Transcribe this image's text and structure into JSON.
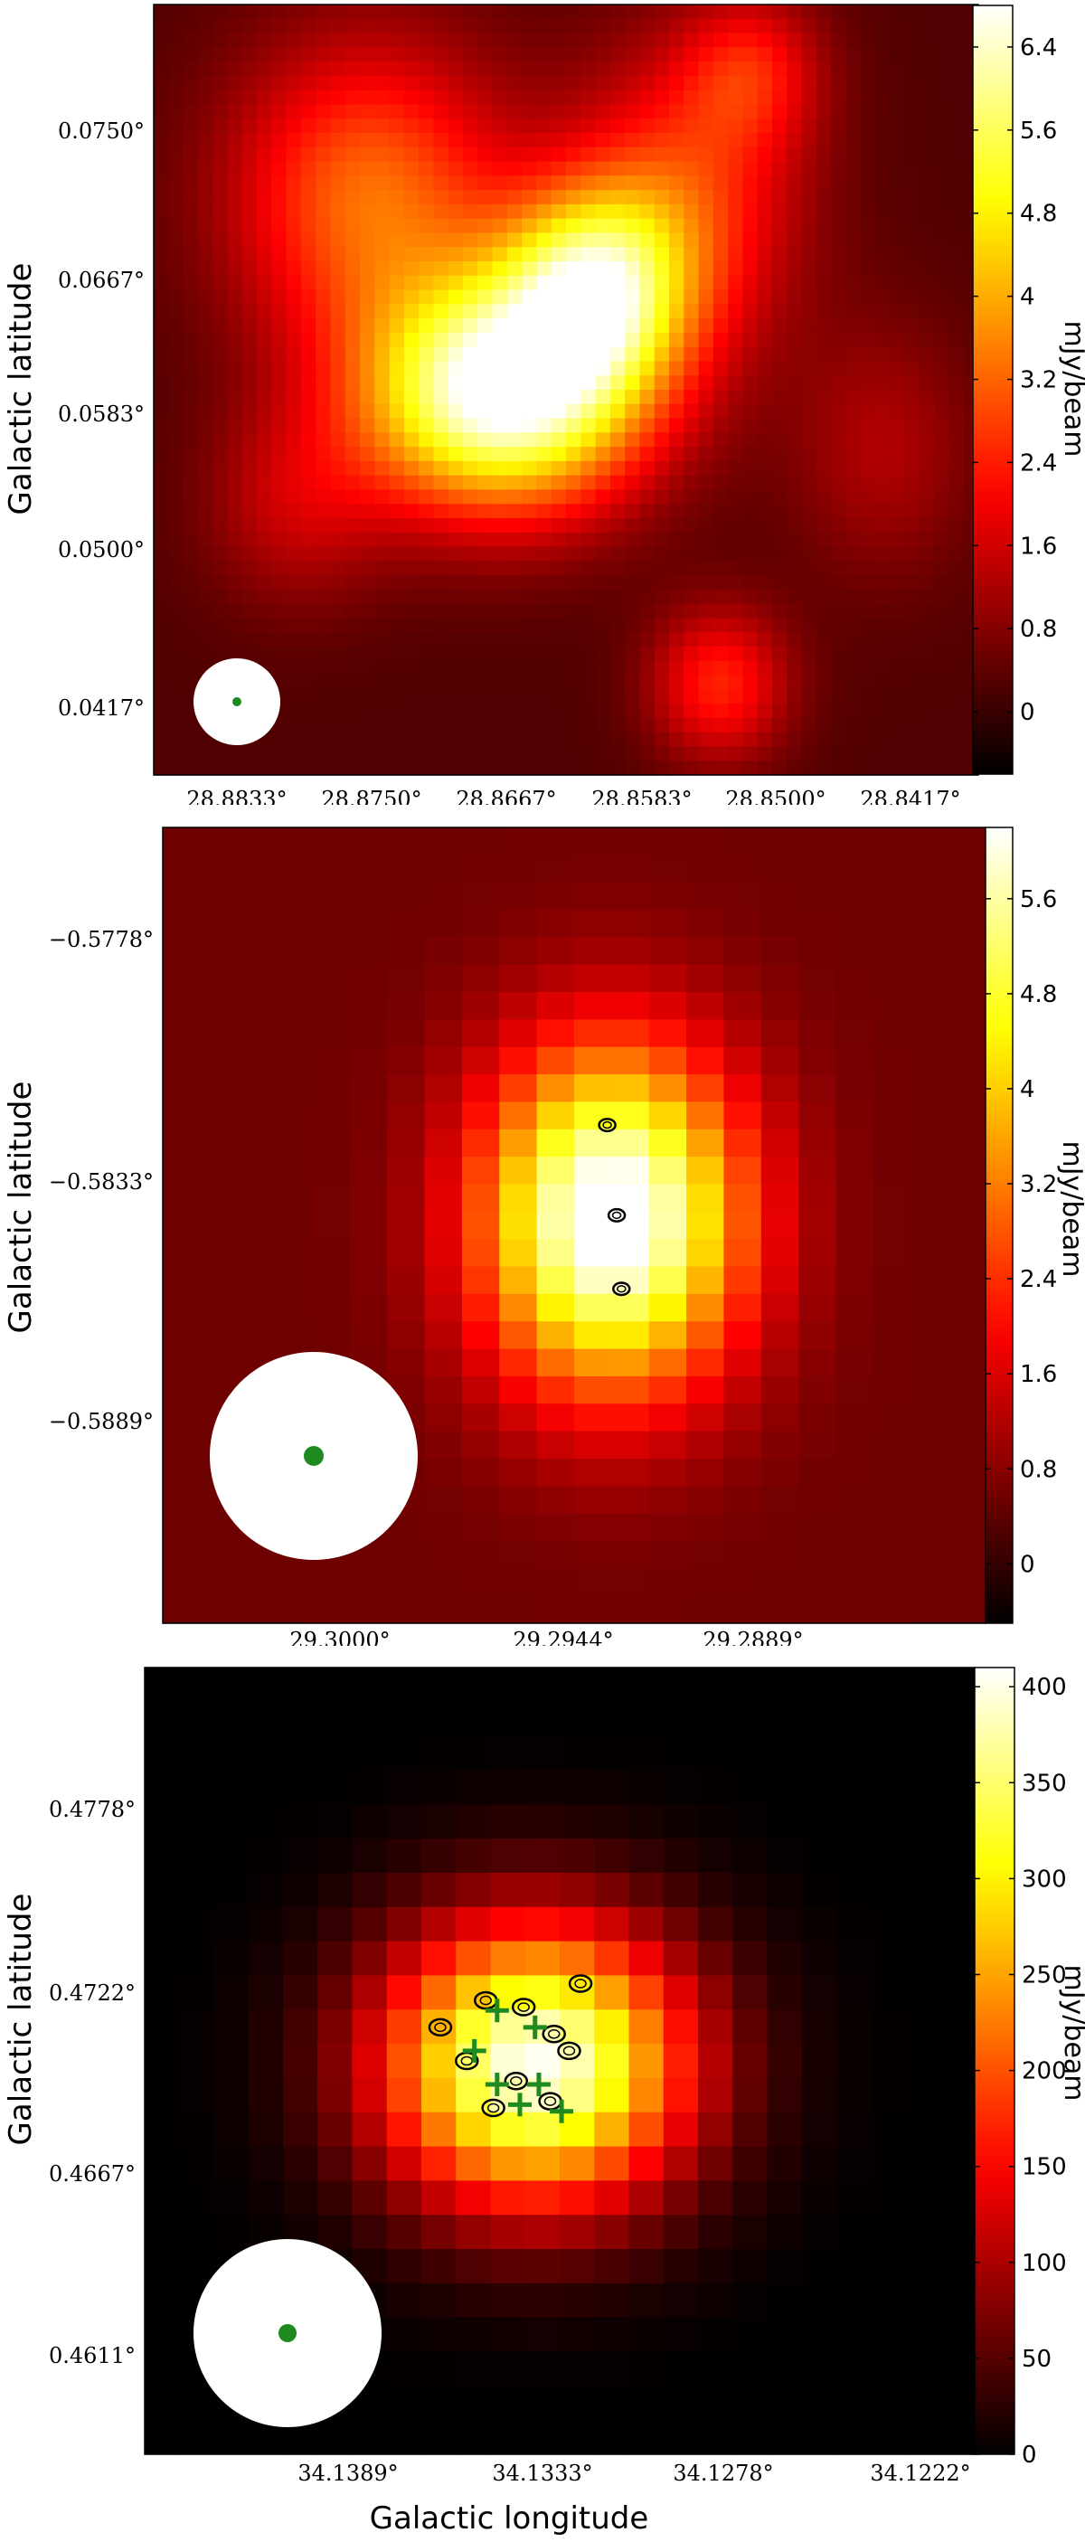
{
  "chart_data": [
    {
      "type": "heatmap",
      "ylabel": "Galactic latitude",
      "xlabel": "",
      "x_ticks": [
        "28.8833°",
        "28.8750°",
        "28.8667°",
        "28.8583°",
        "28.8500°",
        "28.8417°"
      ],
      "y_ticks": [
        "0.0750°",
        "0.0667°",
        "0.0583°",
        "0.0500°",
        "0.0417°"
      ],
      "colorbar_label": "mJy/beam",
      "colorbar_ticks": [
        "6.4",
        "5.6",
        "4.8",
        "4",
        "3.2",
        "2.4",
        "1.6",
        "0.8",
        "0"
      ],
      "colorbar_range": [
        -0.6,
        6.8
      ],
      "colormap": "hot",
      "beam_marker": true,
      "sources": [
        {
          "l": 28.8674,
          "b": 0.059,
          "peak": 6.6,
          "sigma_l": 0.006,
          "sigma_b": 0.0045
        },
        {
          "l": 28.8617,
          "b": 0.065,
          "peak": 4.6,
          "sigma_l": 0.004,
          "sigma_b": 0.004
        },
        {
          "l": 28.8755,
          "b": 0.07,
          "peak": 3.0,
          "sigma_l": 0.006,
          "sigma_b": 0.006
        },
        {
          "l": 28.856,
          "b": 0.07,
          "peak": 2.3,
          "sigma_l": 0.005,
          "sigma_b": 0.006
        },
        {
          "l": 28.852,
          "b": 0.077,
          "peak": 1.6,
          "sigma_l": 0.003,
          "sigma_b": 0.003
        },
        {
          "l": 28.854,
          "b": 0.043,
          "peak": 2.2,
          "sigma_l": 0.003,
          "sigma_b": 0.003
        },
        {
          "l": 28.88,
          "b": 0.053,
          "peak": 1.2,
          "sigma_l": 0.004,
          "sigma_b": 0.004
        },
        {
          "l": 28.844,
          "b": 0.056,
          "peak": 1.0,
          "sigma_l": 0.004,
          "sigma_b": 0.005
        }
      ],
      "contours": []
    },
    {
      "type": "heatmap",
      "ylabel": "Galactic latitude",
      "xlabel": "",
      "x_ticks": [
        "29.3000°",
        "29.2944°",
        "29.2889°"
      ],
      "y_ticks": [
        "−0.5778°",
        "−0.5833°",
        "−0.5889°"
      ],
      "colorbar_label": "mJy/beam",
      "colorbar_ticks": [
        "5.6",
        "4.8",
        "4",
        "3.2",
        "2.4",
        "1.6",
        "0.8",
        "0"
      ],
      "colorbar_range": [
        -0.5,
        6.2
      ],
      "colormap": "hot",
      "beam_marker": true,
      "sources": [
        {
          "l": 29.2937,
          "b": -0.5831,
          "peak": 6.1,
          "sigma_l": 0.00195,
          "sigma_b": 0.0036
        }
      ],
      "contours": [
        {
          "l": 29.2938,
          "b": -0.5803
        },
        {
          "l": 29.2936,
          "b": -0.583
        },
        {
          "l": 29.2935,
          "b": -0.5852
        }
      ]
    },
    {
      "type": "heatmap",
      "ylabel": "Galactic latitude",
      "xlabel": "Galactic longitude",
      "x_ticks": [
        "34.1389°",
        "34.1333°",
        "34.1278°",
        "34.1222°"
      ],
      "y_ticks": [
        "0.4778°",
        "0.4722°",
        "0.4667°",
        "0.4611°"
      ],
      "colorbar_label": "mJy/beam",
      "colorbar_ticks": [
        "400",
        "350",
        "300",
        "250",
        "200",
        "150",
        "100",
        "50",
        "0"
      ],
      "colorbar_range": [
        0,
        410
      ],
      "colormap": "hot",
      "beam_marker": true,
      "sources": [
        {
          "l": 34.1327,
          "b": 0.4711,
          "peak": 405,
          "sigma_l": 0.0029,
          "sigma_b": 0.003
        }
      ],
      "contours": [
        {
          "l": 34.134,
          "b": 0.473
        },
        {
          "l": 34.133,
          "b": 0.4728
        },
        {
          "l": 34.1322,
          "b": 0.472
        },
        {
          "l": 34.1345,
          "b": 0.4712
        },
        {
          "l": 34.1332,
          "b": 0.4706
        },
        {
          "l": 34.1323,
          "b": 0.47
        },
        {
          "l": 34.1338,
          "b": 0.4698
        },
        {
          "l": 34.1315,
          "b": 0.4735
        },
        {
          "l": 34.1352,
          "b": 0.4722
        },
        {
          "l": 34.1318,
          "b": 0.4715
        }
      ],
      "markers": [
        {
          "l": 34.1337,
          "b": 0.4727
        },
        {
          "l": 34.1327,
          "b": 0.4722
        },
        {
          "l": 34.1343,
          "b": 0.4715
        },
        {
          "l": 34.1337,
          "b": 0.4705
        },
        {
          "l": 34.1326,
          "b": 0.4705
        },
        {
          "l": 34.132,
          "b": 0.4697
        },
        {
          "l": 34.1331,
          "b": 0.4699
        }
      ]
    }
  ]
}
